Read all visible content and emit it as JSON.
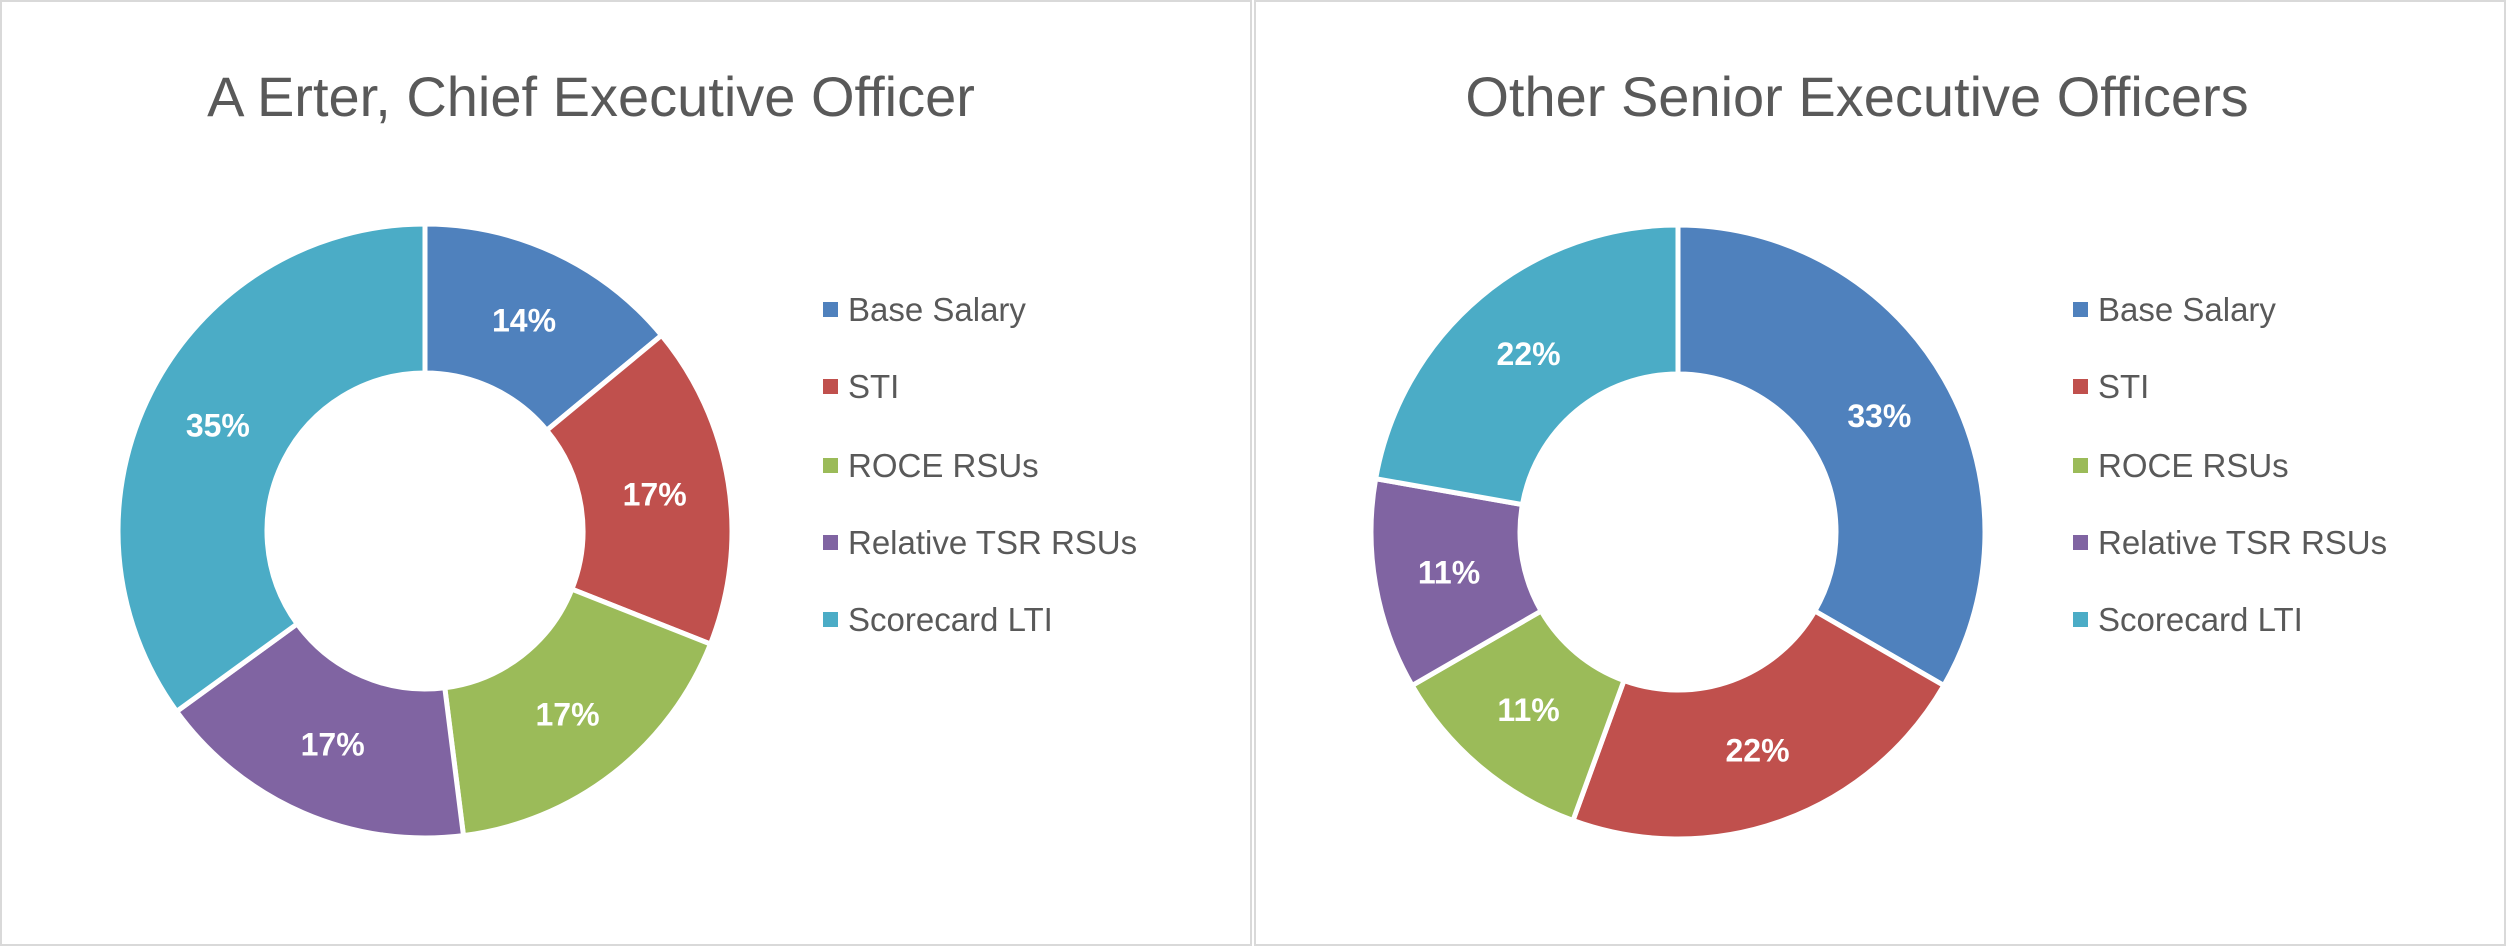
{
  "chart_data": [
    {
      "type": "pie",
      "variant": "donut",
      "title": "A Erter, Chief Executive Officer",
      "categories": [
        "Base Salary",
        "STI",
        "ROCE RSUs",
        "Relative TSR RSUs",
        "Scorecard LTI"
      ],
      "values": [
        14,
        17,
        17,
        17,
        35
      ],
      "labels": [
        "14%",
        "17%",
        "17%",
        "17%",
        "35%"
      ],
      "colors": [
        "#4F81BD",
        "#C0504D",
        "#9BBB59",
        "#8064A2",
        "#4BACC6"
      ],
      "legend": "right"
    },
    {
      "type": "pie",
      "variant": "donut",
      "title": "Other Senior Executive Officers",
      "categories": [
        "Base Salary",
        "STI",
        "ROCE RSUs",
        "Relative TSR RSUs",
        "Scorecard LTI"
      ],
      "values": [
        33,
        22,
        11,
        11,
        22
      ],
      "labels": [
        "33%",
        "22%",
        "11%",
        "11%",
        "22%"
      ],
      "colors": [
        "#4F81BD",
        "#C0504D",
        "#9BBB59",
        "#8064A2",
        "#4BACC6"
      ],
      "legend": "right"
    }
  ]
}
